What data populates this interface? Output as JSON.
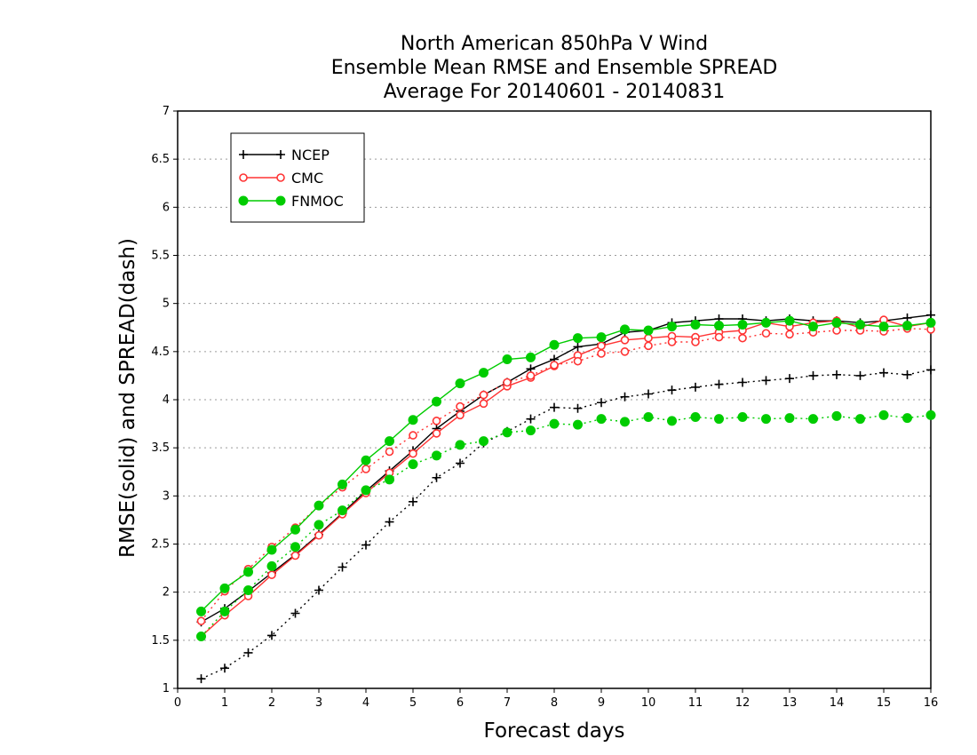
{
  "chart_data": {
    "type": "line",
    "title": [
      "North American 850hPa V Wind",
      "Ensemble Mean RMSE and Ensemble SPREAD",
      "Average For 20140601 - 20140831"
    ],
    "xlabel": "Forecast days",
    "ylabel": "RMSE(solid) and SPREAD(dash)",
    "xlim": [
      0,
      16
    ],
    "ylim": [
      1,
      7
    ],
    "xticks": [
      "0",
      "1",
      "2",
      "3",
      "4",
      "5",
      "6",
      "7",
      "8",
      "9",
      "10",
      "11",
      "12",
      "13",
      "14",
      "15",
      "16"
    ],
    "yticks": [
      "1",
      "1.5",
      "2",
      "2.5",
      "3",
      "3.5",
      "4",
      "4.5",
      "5",
      "5.5",
      "6",
      "6.5",
      "7"
    ],
    "grid": true,
    "legend_position": "top-left",
    "x": [
      0.5,
      1,
      1.5,
      2,
      2.5,
      3,
      3.5,
      4,
      4.5,
      5,
      5.5,
      6,
      6.5,
      7,
      7.5,
      8,
      8.5,
      9,
      9.5,
      10,
      10.5,
      11,
      11.5,
      12,
      12.5,
      13,
      13.5,
      14,
      14.5,
      15,
      15.5,
      16
    ],
    "series": [
      {
        "name": "NCEP",
        "kind": "rmse",
        "color": "#000000",
        "marker": "plus",
        "dash": false,
        "values": [
          1.69,
          1.83,
          2.01,
          2.2,
          2.39,
          2.6,
          2.82,
          3.05,
          3.26,
          3.47,
          3.7,
          3.88,
          4.05,
          4.18,
          4.32,
          4.42,
          4.55,
          4.58,
          4.7,
          4.72,
          4.8,
          4.82,
          4.84,
          4.84,
          4.82,
          4.84,
          4.82,
          4.82,
          4.8,
          4.82,
          4.85,
          4.88
        ]
      },
      {
        "name": "NCEP",
        "kind": "spread",
        "color": "#000000",
        "marker": "plus",
        "dash": true,
        "values": [
          1.1,
          1.21,
          1.37,
          1.55,
          1.78,
          2.02,
          2.26,
          2.49,
          2.73,
          2.94,
          3.19,
          3.34,
          3.55,
          3.67,
          3.8,
          3.92,
          3.91,
          3.97,
          4.03,
          4.06,
          4.1,
          4.13,
          4.16,
          4.18,
          4.2,
          4.22,
          4.25,
          4.26,
          4.25,
          4.28,
          4.26,
          4.31
        ]
      },
      {
        "name": "CMC",
        "kind": "rmse",
        "color": "#ff3333",
        "marker": "circle-open",
        "dash": false,
        "values": [
          1.54,
          1.76,
          1.96,
          2.18,
          2.38,
          2.59,
          2.81,
          3.03,
          3.24,
          3.44,
          3.65,
          3.84,
          3.96,
          4.14,
          4.23,
          4.35,
          4.46,
          4.56,
          4.62,
          4.64,
          4.66,
          4.65,
          4.7,
          4.72,
          4.8,
          4.76,
          4.8,
          4.82,
          4.75,
          4.83,
          4.76,
          4.8
        ]
      },
      {
        "name": "CMC",
        "kind": "spread",
        "color": "#ff3333",
        "marker": "circle-open",
        "dash": true,
        "values": [
          1.7,
          2.01,
          2.24,
          2.47,
          2.67,
          2.9,
          3.09,
          3.28,
          3.46,
          3.63,
          3.78,
          3.93,
          4.05,
          4.18,
          4.25,
          4.36,
          4.4,
          4.48,
          4.5,
          4.56,
          4.6,
          4.6,
          4.65,
          4.64,
          4.69,
          4.68,
          4.7,
          4.72,
          4.72,
          4.71,
          4.74,
          4.73
        ]
      },
      {
        "name": "FNMOC",
        "kind": "rmse",
        "color": "#00cc00",
        "marker": "circle-filled",
        "dash": false,
        "values": [
          1.8,
          2.04,
          2.21,
          2.44,
          2.65,
          2.9,
          3.12,
          3.37,
          3.57,
          3.79,
          3.98,
          4.17,
          4.28,
          4.42,
          4.44,
          4.57,
          4.64,
          4.65,
          4.73,
          4.72,
          4.76,
          4.78,
          4.77,
          4.78,
          4.8,
          4.82,
          4.76,
          4.8,
          4.78,
          4.76,
          4.77,
          4.8
        ]
      },
      {
        "name": "FNMOC",
        "kind": "spread",
        "color": "#00cc00",
        "marker": "circle-filled",
        "dash": true,
        "values": [
          1.54,
          1.8,
          2.02,
          2.27,
          2.47,
          2.7,
          2.85,
          3.06,
          3.17,
          3.33,
          3.42,
          3.53,
          3.57,
          3.66,
          3.68,
          3.75,
          3.74,
          3.8,
          3.77,
          3.82,
          3.78,
          3.82,
          3.8,
          3.82,
          3.8,
          3.81,
          3.8,
          3.83,
          3.8,
          3.84,
          3.81,
          3.84
        ]
      }
    ],
    "legend": [
      {
        "label": "NCEP",
        "color": "#000000",
        "marker": "plus"
      },
      {
        "label": "CMC",
        "color": "#ff3333",
        "marker": "circle-open"
      },
      {
        "label": "FNMOC",
        "color": "#00cc00",
        "marker": "circle-filled"
      }
    ]
  }
}
